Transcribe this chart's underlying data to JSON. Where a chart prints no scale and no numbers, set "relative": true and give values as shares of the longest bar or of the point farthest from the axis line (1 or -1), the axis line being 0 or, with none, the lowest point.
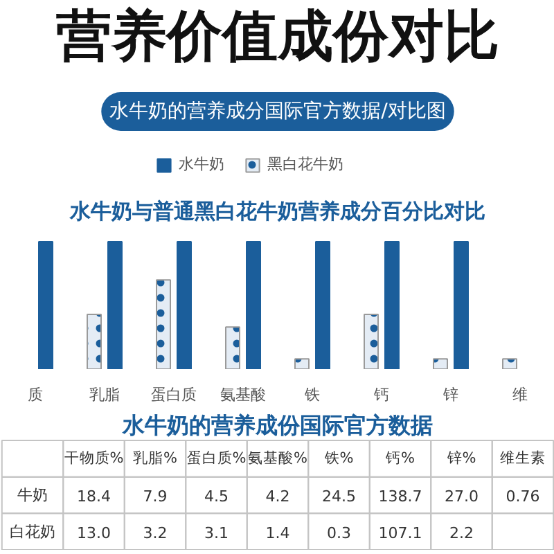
{
  "chart_data": [
    {
      "type": "bar",
      "title": "营养价值成份对比",
      "subtitle": "水牛奶的营养成分国际官方数据/对比图",
      "annotations": [
        "水牛奶与普通黑白花牛奶营养成分百分比对比"
      ],
      "categories": [
        "质",
        "乳脂",
        "蛋白质",
        "氨基酸",
        "铁",
        "钙",
        "锌",
        "维"
      ],
      "relative": true,
      "legend": "top",
      "series": [
        {
          "name": "水牛奶",
          "color": "#1b5e9b",
          "values": [
            1,
            1,
            1,
            1,
            1,
            1,
            1,
            null
          ]
        },
        {
          "name": "黑白花牛奶",
          "color": "#e4ecf5",
          "values": [
            null,
            0.43,
            0.7,
            0.33,
            0.08,
            0.43,
            0.08,
            0.08
          ]
        }
      ]
    },
    {
      "type": "other",
      "title": "水牛奶的营养成份国际官方数据",
      "categories": [
        "干物质%",
        "乳脂%",
        "蛋白质%",
        "氨基酸%",
        "铁%",
        "钙%",
        "锌%",
        "维生素"
      ],
      "series": [
        {
          "name": "牛奶",
          "values": [
            18.4,
            7.9,
            4.5,
            4.2,
            24.5,
            138.7,
            27.0,
            0.76
          ],
          "value_labels": [
            "18.4",
            "7.9",
            "4.5",
            "4.2",
            "24.5",
            "138.7",
            "27.0",
            "0.76"
          ]
        },
        {
          "name": "白花奶",
          "values": [
            13.0,
            3.2,
            3.1,
            1.4,
            0.3,
            107.1,
            2.2,
            null
          ],
          "value_labels": [
            "13.0",
            "3.2",
            "3.1",
            "1.4",
            "0.3",
            "107.1",
            "2.2",
            null
          ]
        }
      ]
    }
  ]
}
